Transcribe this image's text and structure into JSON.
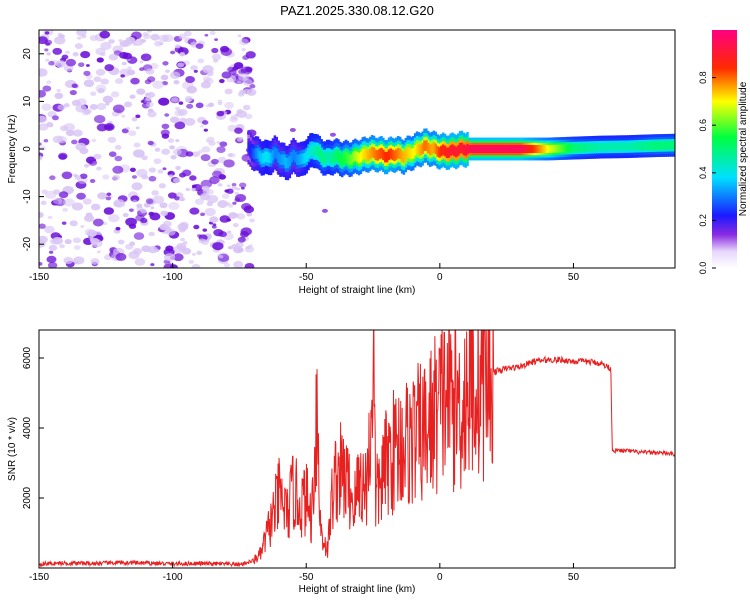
{
  "figure_title": "PAZ1.2025.330.08.12.G20",
  "colors": {
    "snr_line": "#e82020",
    "axes": "#000000",
    "speckle_dark": "#6a0dd8",
    "speckle_light": "#d8c4f4"
  },
  "chart_data": [
    {
      "type": "heatmap",
      "title": "",
      "xlabel": "Height of straight line (km)",
      "ylabel": "Frequency (Hz)",
      "xlim": [
        -150,
        88
      ],
      "ylim": [
        -25,
        25
      ],
      "x_ticks": [
        -150,
        -100,
        -50,
        0,
        50
      ],
      "y_ticks": [
        -20,
        -10,
        0,
        10,
        20
      ],
      "colorbar": {
        "label": "Normalized spectral amplitude",
        "range": [
          0,
          1
        ],
        "ticks": [
          0.0,
          0.2,
          0.4,
          0.6,
          0.8
        ],
        "tick_labels": [
          "0.0",
          "0.2",
          "0.4",
          "0.6",
          "0.8"
        ],
        "colormap": "rainbow (white-violet-blue-cyan-green-yellow-red-magenta)"
      },
      "noise_region_x": [
        -150,
        -72
      ],
      "ridge": {
        "x": [
          -72,
          -68,
          -65,
          -62,
          -58,
          -55,
          -52,
          -50,
          -47,
          -45,
          -42,
          -40,
          -37,
          -34,
          -30,
          -27,
          -24,
          -20,
          -17,
          -14,
          -10,
          -6,
          -3,
          0,
          4,
          8,
          12,
          20,
          30,
          40,
          50,
          60,
          70,
          80,
          88
        ],
        "freq": [
          0.0,
          -1.5,
          -2.0,
          -1.0,
          -3.0,
          -1.5,
          -2.5,
          -1.0,
          0.0,
          -1.5,
          -2.0,
          -1.5,
          -2.0,
          -2.0,
          -1.5,
          -1.0,
          -1.0,
          -1.5,
          -1.0,
          -1.5,
          -0.5,
          0.5,
          0.0,
          -0.5,
          -0.5,
          0.0,
          0.0,
          0.0,
          0.0,
          0.0,
          0.2,
          0.4,
          0.5,
          0.7,
          0.8
        ],
        "amplitude": [
          0.2,
          0.35,
          0.4,
          0.3,
          0.35,
          0.3,
          0.35,
          0.4,
          0.45,
          0.5,
          0.45,
          0.5,
          0.55,
          0.6,
          0.7,
          0.75,
          0.8,
          0.85,
          0.8,
          0.75,
          0.7,
          0.8,
          0.75,
          0.85,
          0.9,
          0.9,
          0.95,
          0.95,
          0.95,
          0.7,
          0.5,
          0.45,
          0.45,
          0.5,
          0.5
        ]
      }
    },
    {
      "type": "line",
      "title": "",
      "xlabel": "Height of straight line (km)",
      "ylabel": "SNR (10 * v/v)",
      "xlim": [
        -150,
        88
      ],
      "ylim": [
        0,
        6800
      ],
      "x_ticks": [
        -150,
        -100,
        -50,
        0,
        50
      ],
      "y_ticks": [
        2000,
        4000,
        6000
      ],
      "grid": false,
      "series": [
        {
          "name": "",
          "color": "#e82020",
          "x": [
            -150,
            -140,
            -130,
            -120,
            -110,
            -100,
            -90,
            -80,
            -75,
            -70,
            -67,
            -65,
            -62,
            -60,
            -57,
            -55,
            -52,
            -50,
            -48,
            -46,
            -45,
            -44,
            -42,
            -40,
            -38,
            -35,
            -32,
            -30,
            -28,
            -26,
            -25,
            -24,
            -22,
            -20,
            -18,
            -15,
            -12,
            -10,
            -8,
            -5,
            -2,
            0,
            2,
            5,
            8,
            10,
            15,
            20,
            25,
            30,
            35,
            40,
            45,
            50,
            55,
            60,
            64,
            64.5,
            65,
            70,
            75,
            80,
            85,
            88
          ],
          "y": [
            120,
            140,
            130,
            150,
            140,
            120,
            130,
            110,
            100,
            200,
            400,
            900,
            1600,
            2100,
            1500,
            2200,
            1800,
            2000,
            1400,
            4900,
            1500,
            900,
            500,
            2300,
            2800,
            2500,
            1800,
            2600,
            2200,
            3500,
            6800,
            2000,
            2500,
            3000,
            3300,
            3500,
            3600,
            3700,
            3800,
            3900,
            4400,
            4600,
            5000,
            4800,
            4600,
            5100,
            5400,
            5600,
            5700,
            5750,
            5900,
            5950,
            5950,
            5900,
            5900,
            5850,
            5700,
            3400,
            3350,
            3350,
            3300,
            3300,
            3280,
            3250
          ]
        }
      ]
    }
  ]
}
